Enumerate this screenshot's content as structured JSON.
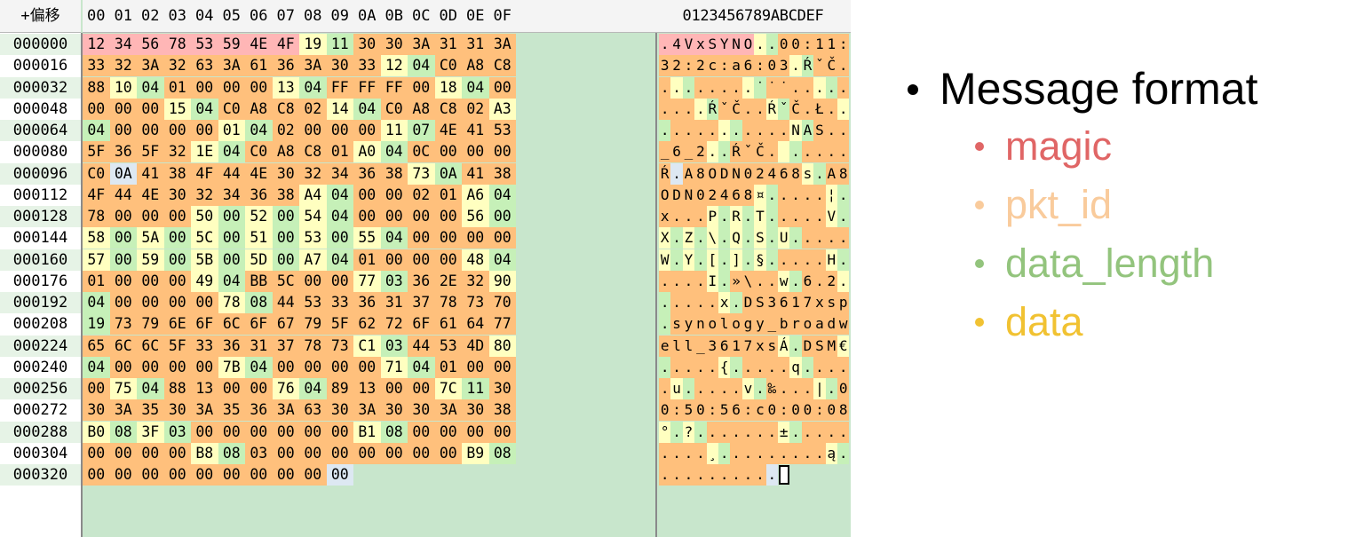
{
  "header": {
    "offset_label": "+偏移",
    "columns": [
      "00",
      "01",
      "02",
      "03",
      "04",
      "05",
      "06",
      "07",
      "08",
      "09",
      "0A",
      "0B",
      "0C",
      "0D",
      "0E",
      "0F"
    ],
    "ascii_header": "0123456789ABCDEF"
  },
  "colors": {
    "magic": "#ffb6b6",
    "pkt_id": "#ffffc0",
    "data_length": "#c6f0b8",
    "data": "#ffc07c",
    "none": "#dde8f2",
    "legend_magic": "#e06666",
    "legend_pkt_id": "#f9cb9c",
    "legend_data_length": "#93c47d",
    "legend_data": "#f1c232"
  },
  "offsets": [
    "000000",
    "000016",
    "000032",
    "000048",
    "000064",
    "000080",
    "000096",
    "000112",
    "000128",
    "000144",
    "000160",
    "000176",
    "000192",
    "000208",
    "000224",
    "000240",
    "000256",
    "000272",
    "000288",
    "000304",
    "000320"
  ],
  "rows": [
    {
      "hex": [
        "12",
        "34",
        "56",
        "78",
        "53",
        "59",
        "4E",
        "4F",
        "19",
        "11",
        "30",
        "30",
        "3A",
        "31",
        "31",
        "3A"
      ],
      "ascii": ".4VxSYNO..00:11:",
      "cls": "MMMMMMMMPLDDDDDD"
    },
    {
      "hex": [
        "33",
        "32",
        "3A",
        "32",
        "63",
        "3A",
        "61",
        "36",
        "3A",
        "30",
        "33",
        "12",
        "04",
        "C0",
        "A8",
        "C8"
      ],
      "ascii": "32:2c:a6:03.ŔˇČ",
      "cls": "DDDDDDDDDDDPLDDD"
    },
    {
      "hex": [
        "88",
        "10",
        "04",
        "01",
        "00",
        "00",
        "00",
        "13",
        "04",
        "FF",
        "FF",
        "FF",
        "00",
        "18",
        "04",
        "00"
      ],
      "ascii": "........˙˙˙....",
      "cls": "DPLDDDDPLDDDDPLD"
    },
    {
      "hex": [
        "00",
        "00",
        "00",
        "15",
        "04",
        "C0",
        "A8",
        "C8",
        "02",
        "14",
        "04",
        "C0",
        "A8",
        "C8",
        "02",
        "A3"
      ],
      "ascii": "....ŔˇČ..ŔˇČ.Ł",
      "cls": "DDDPLDDDDPLDDDDP"
    },
    {
      "hex": [
        "04",
        "00",
        "00",
        "00",
        "00",
        "01",
        "04",
        "02",
        "00",
        "00",
        "00",
        "11",
        "07",
        "4E",
        "41",
        "53"
      ],
      "ascii": "...........NAS",
      "cls": "LDDDDPLDDDDPLDDD"
    },
    {
      "hex": [
        "5F",
        "36",
        "5F",
        "32",
        "1E",
        "04",
        "C0",
        "A8",
        "C8",
        "01",
        "A0",
        "04",
        "0C",
        "00",
        "00",
        "00"
      ],
      "ascii": "_6_2..ŔˇČ. ....",
      "cls": "DDDDPLDDDDPLDDDD"
    },
    {
      "hex": [
        "C0",
        "0A",
        "41",
        "38",
        "4F",
        "44",
        "4E",
        "30",
        "32",
        "34",
        "36",
        "38",
        "73",
        "0A",
        "41",
        "38"
      ],
      "ascii": "Ŕ.A8ODN02468s.A8",
      "cls": "DNDDDDDDDDDDPLDD"
    },
    {
      "hex": [
        "4F",
        "44",
        "4E",
        "30",
        "32",
        "34",
        "36",
        "38",
        "A4",
        "04",
        "00",
        "00",
        "02",
        "01",
        "A6",
        "04"
      ],
      "ascii": "ODN02468¤.....¦.",
      "cls": "DDDDDDDDPLDDDDPL"
    },
    {
      "hex": [
        "78",
        "00",
        "00",
        "00",
        "50",
        "00",
        "52",
        "00",
        "54",
        "04",
        "00",
        "00",
        "00",
        "00",
        "56",
        "00"
      ],
      "ascii": "x...P.R.T.....V.",
      "cls": "DDDDPLPLPLDDDDPL"
    },
    {
      "hex": [
        "58",
        "00",
        "5A",
        "00",
        "5C",
        "00",
        "51",
        "00",
        "53",
        "00",
        "55",
        "04",
        "00",
        "00",
        "00",
        "00"
      ],
      "ascii": "X.Z.\\.Q.S.U.....",
      "cls": "PLPLPLPLPLPLDDDD"
    },
    {
      "hex": [
        "57",
        "00",
        "59",
        "00",
        "5B",
        "00",
        "5D",
        "00",
        "A7",
        "04",
        "01",
        "00",
        "00",
        "00",
        "48",
        "04"
      ],
      "ascii": "W.Y.[.].§.....H.",
      "cls": "PLPLPLPLPLDDDDPL"
    },
    {
      "hex": [
        "01",
        "00",
        "00",
        "00",
        "49",
        "04",
        "BB",
        "5C",
        "00",
        "00",
        "77",
        "03",
        "36",
        "2E",
        "32",
        "90"
      ],
      "ascii": "....I.»\\..w.6.2.",
      "cls": "DDDDPLDDDDPLDDDP"
    },
    {
      "hex": [
        "04",
        "00",
        "00",
        "00",
        "00",
        "78",
        "08",
        "44",
        "53",
        "33",
        "36",
        "31",
        "37",
        "78",
        "73",
        "70"
      ],
      "ascii": ".....x.DS3617xsp",
      "cls": "LDDDDPLDDDDDDDDD"
    },
    {
      "hex": [
        "19",
        "73",
        "79",
        "6E",
        "6F",
        "6C",
        "6F",
        "67",
        "79",
        "5F",
        "62",
        "72",
        "6F",
        "61",
        "64",
        "77"
      ],
      "ascii": ".synology_broadw",
      "cls": "LDDDDDDDDDDDDDDD"
    },
    {
      "hex": [
        "65",
        "6C",
        "6C",
        "5F",
        "33",
        "36",
        "31",
        "37",
        "78",
        "73",
        "C1",
        "03",
        "44",
        "53",
        "4D",
        "80"
      ],
      "ascii": "ell_3617xsÁ.DSM€",
      "cls": "DDDDDDDDDDPLDDDP"
    },
    {
      "hex": [
        "04",
        "00",
        "00",
        "00",
        "00",
        "7B",
        "04",
        "00",
        "00",
        "00",
        "00",
        "71",
        "04",
        "01",
        "00",
        "00"
      ],
      "ascii": ".....{.....q....",
      "cls": "LDDDDPLDDDDPLDDD"
    },
    {
      "hex": [
        "00",
        "75",
        "04",
        "88",
        "13",
        "00",
        "00",
        "76",
        "04",
        "89",
        "13",
        "00",
        "00",
        "7C",
        "11",
        "30"
      ],
      "ascii": ".u.....v.‰...|.0",
      "cls": "DPLDDDDPLDDDDPLD"
    },
    {
      "hex": [
        "30",
        "3A",
        "35",
        "30",
        "3A",
        "35",
        "36",
        "3A",
        "63",
        "30",
        "3A",
        "30",
        "30",
        "3A",
        "30",
        "38"
      ],
      "ascii": "0:50:56:c0:00:08",
      "cls": "DDDDDDDDDDDDDDDD"
    },
    {
      "hex": [
        "B0",
        "08",
        "3F",
        "03",
        "00",
        "00",
        "00",
        "00",
        "00",
        "00",
        "B1",
        "08",
        "00",
        "00",
        "00",
        "00"
      ],
      "ascii": "°.?.......±.....",
      "cls": "PLPLDDDDDDPLDDDD"
    },
    {
      "hex": [
        "00",
        "00",
        "00",
        "00",
        "B8",
        "08",
        "03",
        "00",
        "00",
        "00",
        "00",
        "00",
        "00",
        "00",
        "B9",
        "08"
      ],
      "ascii": "....¸.........ą.",
      "cls": "DDDDPLDDDDDDDDPL"
    },
    {
      "hex": [
        "00",
        "00",
        "00",
        "00",
        "00",
        "00",
        "00",
        "00",
        "00",
        "00"
      ],
      "ascii": "..........",
      "cls": "DDDDDDDDDN"
    }
  ],
  "legend": {
    "title": "Message format",
    "items": [
      {
        "label": "magic",
        "color": "#e06666"
      },
      {
        "label": "pkt_id",
        "color": "#f9cb9c"
      },
      {
        "label": "data_length",
        "color": "#93c47d"
      },
      {
        "label": "data",
        "color": "#f1c232"
      }
    ]
  }
}
